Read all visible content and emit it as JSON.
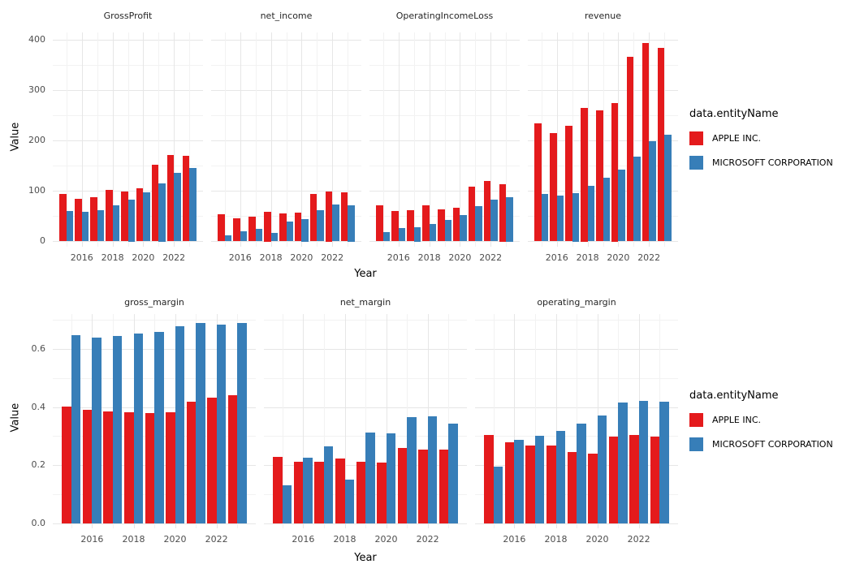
{
  "colors": {
    "apple": "#e41a1c",
    "microsoft": "#377eb8",
    "grid_major": "#e6e6e6",
    "grid_minor": "#f2f2f2",
    "axis_text": "#4d4d4d",
    "background": "#ffffff"
  },
  "axes": {
    "x_title": "Year",
    "y_title": "Value"
  },
  "legend": {
    "title": "data.entityName",
    "items": [
      {
        "label": "APPLE INC.",
        "color_key": "apple"
      },
      {
        "label": "MICROSOFT CORPORATION",
        "color_key": "microsoft"
      }
    ],
    "position": "right"
  },
  "layout": {
    "x_tick_years": [
      2016,
      2018,
      2020,
      2022
    ],
    "x_tick_labels": [
      "2016",
      "2018",
      "2020",
      "2022"
    ],
    "rows": [
      {
        "facets": [
          0,
          1,
          2,
          3
        ],
        "y_ticks": [
          0,
          100,
          200,
          300,
          400
        ],
        "y_tick_labels": [
          "0",
          "100",
          "200",
          "300",
          "400"
        ]
      },
      {
        "facets": [
          4,
          5,
          6
        ],
        "y_ticks": [
          0,
          0.2,
          0.4,
          0.6
        ],
        "y_tick_labels": [
          "0.0",
          "0.2",
          "0.4",
          "0.6"
        ]
      }
    ],
    "grid": true
  },
  "chart_data": [
    {
      "type": "bar",
      "title": "GrossProfit",
      "xlabel": "Year",
      "ylabel": "Value",
      "categories": [
        2015,
        2016,
        2017,
        2018,
        2019,
        2020,
        2021,
        2022,
        2023
      ],
      "ylim": [
        0,
        400
      ],
      "series": [
        {
          "name": "APPLE INC.",
          "values": [
            93.6,
            84.3,
            88.2,
            101.8,
            98.4,
            105.0,
            152.8,
            170.8,
            169.1
          ]
        },
        {
          "name": "MICROSOFT CORPORATION",
          "values": [
            60.5,
            58.4,
            62.3,
            72.0,
            82.9,
            96.9,
            115.9,
            135.6,
            146.1
          ]
        }
      ]
    },
    {
      "type": "bar",
      "title": "net_income",
      "xlabel": "Year",
      "ylabel": "Value",
      "categories": [
        2015,
        2016,
        2017,
        2018,
        2019,
        2020,
        2021,
        2022,
        2023
      ],
      "ylim": [
        0,
        400
      ],
      "series": [
        {
          "name": "APPLE INC.",
          "values": [
            53.4,
            45.7,
            48.4,
            59.5,
            55.3,
            57.4,
            94.7,
            99.8,
            97.0
          ]
        },
        {
          "name": "MICROSOFT CORPORATION",
          "values": [
            12.2,
            20.5,
            25.5,
            16.6,
            39.2,
            44.3,
            61.3,
            72.7,
            72.4
          ]
        }
      ]
    },
    {
      "type": "bar",
      "title": "OperatingIncomeLoss",
      "xlabel": "Year",
      "ylabel": "Value",
      "categories": [
        2015,
        2016,
        2017,
        2018,
        2019,
        2020,
        2021,
        2022,
        2023
      ],
      "ylim": [
        0,
        400
      ],
      "series": [
        {
          "name": "APPLE INC.",
          "values": [
            71.2,
            60.0,
            61.3,
            70.9,
            63.9,
            66.3,
            108.9,
            119.4,
            114.3
          ]
        },
        {
          "name": "MICROSOFT CORPORATION",
          "values": [
            18.2,
            26.1,
            29.0,
            35.1,
            43.0,
            53.0,
            69.9,
            83.4,
            88.5
          ]
        }
      ]
    },
    {
      "type": "bar",
      "title": "revenue",
      "xlabel": "Year",
      "ylabel": "Value",
      "categories": [
        2015,
        2016,
        2017,
        2018,
        2019,
        2020,
        2021,
        2022,
        2023
      ],
      "ylim": [
        0,
        400
      ],
      "series": [
        {
          "name": "APPLE INC.",
          "values": [
            233.7,
            215.6,
            229.2,
            265.6,
            260.2,
            274.5,
            365.8,
            394.3,
            383.3
          ]
        },
        {
          "name": "MICROSOFT CORPORATION",
          "values": [
            93.6,
            91.2,
            96.6,
            110.4,
            125.8,
            143.0,
            168.1,
            198.3,
            211.9
          ]
        }
      ]
    },
    {
      "type": "bar",
      "title": "gross_margin",
      "xlabel": "Year",
      "ylabel": "Value",
      "categories": [
        2015,
        2016,
        2017,
        2018,
        2019,
        2020,
        2021,
        2022,
        2023
      ],
      "ylim": [
        0,
        0.7
      ],
      "series": [
        {
          "name": "APPLE INC.",
          "values": [
            0.401,
            0.391,
            0.385,
            0.383,
            0.378,
            0.382,
            0.418,
            0.433,
            0.441
          ]
        },
        {
          "name": "MICROSOFT CORPORATION",
          "values": [
            0.647,
            0.64,
            0.645,
            0.652,
            0.659,
            0.678,
            0.689,
            0.684,
            0.689
          ]
        }
      ]
    },
    {
      "type": "bar",
      "title": "net_margin",
      "xlabel": "Year",
      "ylabel": "Value",
      "categories": [
        2015,
        2016,
        2017,
        2018,
        2019,
        2020,
        2021,
        2022,
        2023
      ],
      "ylim": [
        0,
        0.7
      ],
      "series": [
        {
          "name": "APPLE INC.",
          "values": [
            0.228,
            0.212,
            0.211,
            0.224,
            0.212,
            0.209,
            0.259,
            0.253,
            0.253
          ]
        },
        {
          "name": "MICROSOFT CORPORATION",
          "values": [
            0.13,
            0.225,
            0.264,
            0.15,
            0.312,
            0.31,
            0.365,
            0.367,
            0.342
          ]
        }
      ]
    },
    {
      "type": "bar",
      "title": "operating_margin",
      "xlabel": "Year",
      "ylabel": "Value",
      "categories": [
        2015,
        2016,
        2017,
        2018,
        2019,
        2020,
        2021,
        2022,
        2023
      ],
      "ylim": [
        0,
        0.7
      ],
      "series": [
        {
          "name": "APPLE INC.",
          "values": [
            0.305,
            0.278,
            0.267,
            0.267,
            0.246,
            0.241,
            0.298,
            0.303,
            0.298
          ]
        },
        {
          "name": "MICROSOFT CORPORATION",
          "values": [
            0.194,
            0.287,
            0.3,
            0.318,
            0.342,
            0.371,
            0.416,
            0.42,
            0.418
          ]
        }
      ]
    }
  ]
}
